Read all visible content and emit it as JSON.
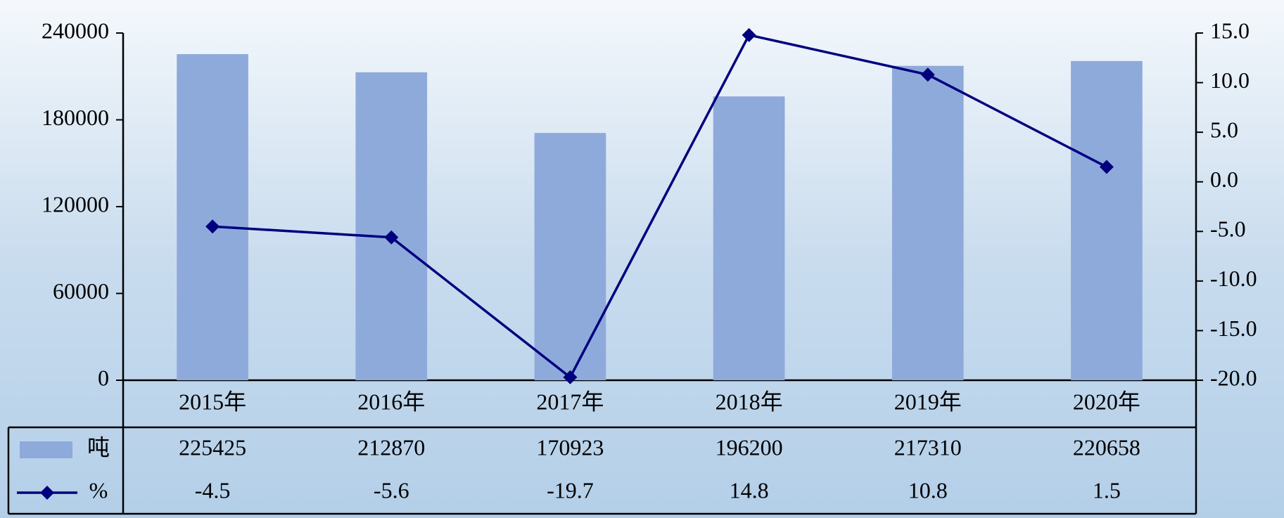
{
  "chart_data": {
    "type": "combo",
    "categories": [
      "2015年",
      "2016年",
      "2017年",
      "2018年",
      "2019年",
      "2020年"
    ],
    "series": [
      {
        "name": "吨",
        "type": "bar",
        "color": "#8eaadb",
        "values": [
          225425,
          212870,
          170923,
          196200,
          217310,
          220658
        ]
      },
      {
        "name": "%",
        "type": "line",
        "axis": "y2",
        "color": "#00007f",
        "values": [
          -4.5,
          -5.6,
          -19.7,
          14.8,
          10.8,
          1.5
        ]
      }
    ],
    "ylim": [
      0,
      240000
    ],
    "yticks": [
      0,
      60000,
      120000,
      180000,
      240000
    ],
    "y2lim": [
      -20,
      15
    ],
    "y2ticks": [
      {
        "value": -20,
        "label": "-20.0"
      },
      {
        "value": -15,
        "label": "-15.0"
      },
      {
        "value": -10,
        "label": "-10.0"
      },
      {
        "value": -5,
        "label": "-5.0"
      },
      {
        "value": 0,
        "label": "0.0"
      },
      {
        "value": 5,
        "label": "5.0"
      },
      {
        "value": 10,
        "label": "10.0"
      },
      {
        "value": 15,
        "label": "15.0"
      }
    ],
    "data_table": true
  }
}
